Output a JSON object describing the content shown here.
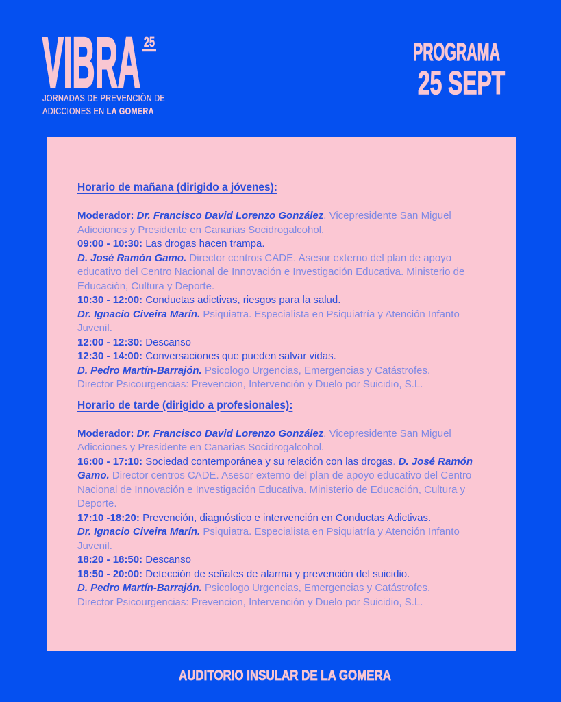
{
  "colors": {
    "background_blue": "#0550F0",
    "card_pink": "#FBC7D3",
    "accent_pink": "#F9C6D2",
    "text_dark_blue": "#2C4EDA",
    "text_light_blue": "#7F89E4"
  },
  "header": {
    "logo_text": "VIBRA",
    "logo_year": "25",
    "subtitle_line1": "JORNADAS DE PREVENCIÓN DE",
    "subtitle_line2_prefix": "ADICCIONES EN ",
    "subtitle_line2_bold": "LA GOMERA",
    "program_label": "PROGRAMA",
    "program_date": "25 SEPT"
  },
  "card": {
    "sections": [
      {
        "heading": "Horario de mañana (dirigido a jóvenes):",
        "paragraphs": [
          [
            {
              "t": "Moderador: ",
              "s": "bold"
            },
            {
              "t": "Dr. Francisco David Lorenzo González",
              "s": "name"
            },
            {
              "t": ". Vicepresidente San Miguel Adicciones y Presidente en Canarias Socidrogalcohol.",
              "s": "light"
            }
          ],
          [
            {
              "t": "09:00 - 10:30: ",
              "s": "bold"
            },
            {
              "t": "Las drogas hacen trampa.",
              "s": "strong"
            }
          ],
          [
            {
              "t": "D. José Ramón Gamo.",
              "s": "name"
            },
            {
              "t": " Director centros CADE. Asesor externo del plan de apoyo educativo del Centro Nacional de Innovación e Investigación Educativa. Ministerio de Educación, Cultura y Deporte.",
              "s": "light"
            }
          ],
          [
            {
              "t": "10:30 - 12:00: ",
              "s": "bold"
            },
            {
              "t": "Conductas adictivas, riesgos para la salud.",
              "s": "strong"
            }
          ],
          [
            {
              "t": "Dr. Ignacio Civeira Marín.",
              "s": "name"
            },
            {
              "t": " Psiquiatra. Especialista en Psiquiatría y Atención Infanto Juvenil.",
              "s": "light"
            }
          ],
          [
            {
              "t": "12:00 - 12:30: ",
              "s": "bold"
            },
            {
              "t": "Descanso",
              "s": "strong"
            }
          ],
          [
            {
              "t": "12:30 - 14:00: ",
              "s": "bold"
            },
            {
              "t": "Conversaciones que pueden salvar vidas.",
              "s": "strong"
            }
          ],
          [
            {
              "t": "D. Pedro Martín-Barrajón.",
              "s": "name"
            },
            {
              "t": " Psicologo Urgencias, Emergencias y Catástrofes.",
              "s": "light"
            }
          ],
          [
            {
              "t": "Director Psicourgencias: Prevencion, Intervención y Duelo por Suicidio, S.L.",
              "s": "light"
            }
          ]
        ]
      },
      {
        "heading": "Horario de tarde (dirigido a profesionales):",
        "paragraphs": [
          [
            {
              "t": "Moderador: ",
              "s": "bold"
            },
            {
              "t": "Dr. Francisco David Lorenzo González",
              "s": "name"
            },
            {
              "t": ". Vicepresidente San Miguel Adicciones y Presidente en Canarias Socidrogalcohol.",
              "s": "light"
            }
          ],
          [
            {
              "t": "16:00 - 17:10: ",
              "s": "bold"
            },
            {
              "t": "Sociedad contemporánea y su relación con las drogas",
              "s": "strong"
            },
            {
              "t": ". ",
              "s": "light"
            },
            {
              "t": "D. José Ramón Gamo.",
              "s": "name"
            },
            {
              "t": " Director centros CADE. Asesor externo del plan de apoyo educativo del Centro Nacional de Innovación e Investigación Educativa. Ministerio de Educación, Cultura y Deporte.",
              "s": "light"
            }
          ],
          [
            {
              "t": "17:10 -18:20: ",
              "s": "bold"
            },
            {
              "t": "Prevención, diagnóstico e intervención en Conductas Adictivas.",
              "s": "strong"
            }
          ],
          [
            {
              "t": "Dr. Ignacio Civeira Marín.",
              "s": "name"
            },
            {
              "t": " Psiquiatra. Especialista en Psiquiatría y Atención Infanto Juvenil.",
              "s": "light"
            }
          ],
          [
            {
              "t": "18:20 - 18:50: ",
              "s": "bold"
            },
            {
              "t": "Descanso",
              "s": "strong"
            }
          ],
          [
            {
              "t": "18:50 - 20:00: ",
              "s": "bold"
            },
            {
              "t": "Detección de señales de alarma y prevención del suicidio.",
              "s": "strong"
            }
          ],
          [
            {
              "t": "D. Pedro Martín-Barrajón.",
              "s": "name"
            },
            {
              "t": " Psicologo Urgencias, Emergencias y Catástrofes.",
              "s": "light"
            }
          ],
          [
            {
              "t": "Director Psicourgencias: Prevencion, Intervención y Duelo por Suicidio, S.L.",
              "s": "light"
            }
          ]
        ]
      }
    ]
  },
  "footer": {
    "venue": "AUDITORIO INSULAR DE LA GOMERA"
  }
}
